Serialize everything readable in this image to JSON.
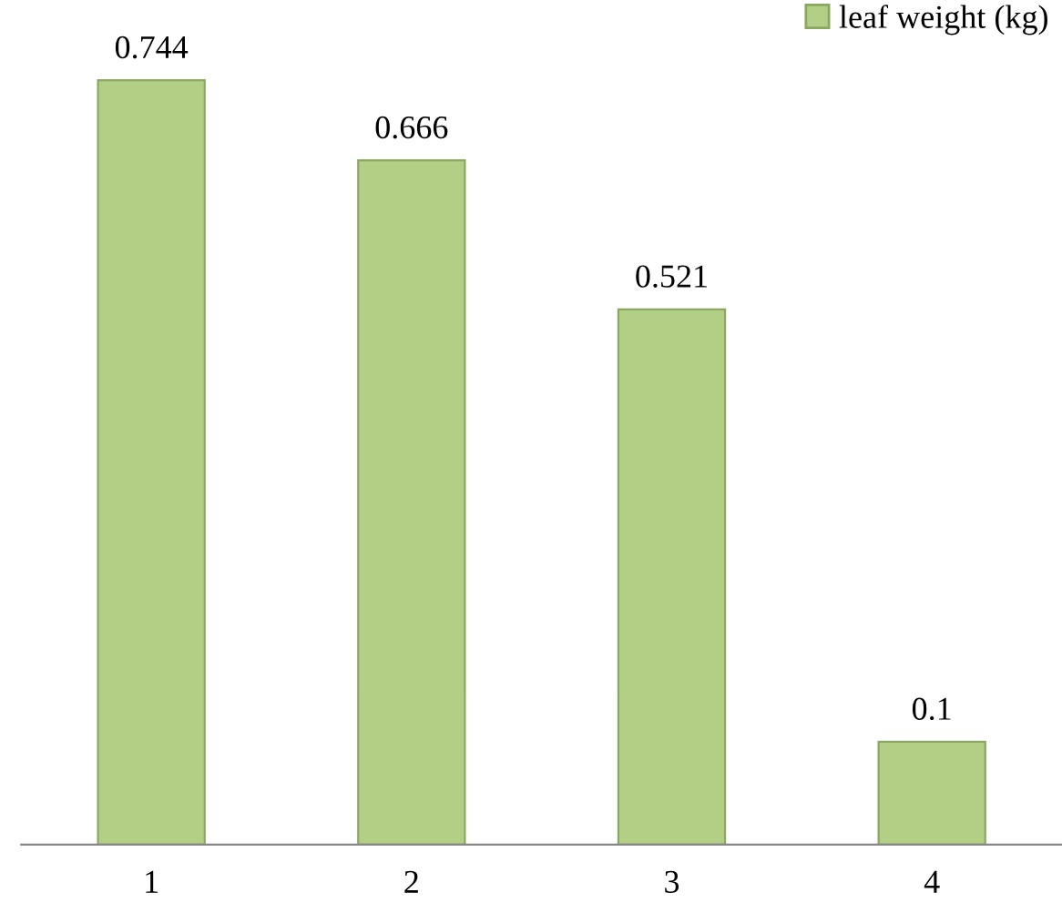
{
  "chart_data": {
    "type": "bar",
    "categories": [
      "1",
      "2",
      "3",
      "4"
    ],
    "series": [
      {
        "name": "leaf weight (kg)",
        "color": "#b3cf85",
        "values": [
          0.744,
          0.666,
          0.521,
          0.1
        ]
      }
    ],
    "data_labels": true,
    "legend": "top right",
    "grid": false
  }
}
